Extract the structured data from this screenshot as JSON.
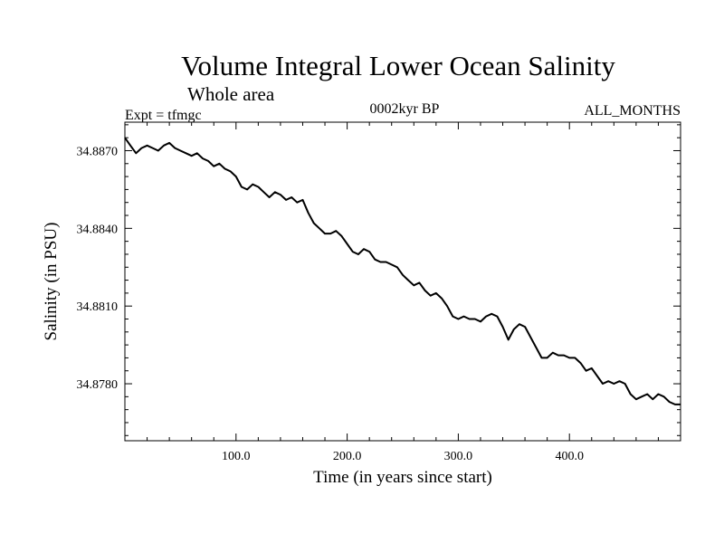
{
  "chart_data": {
    "type": "line",
    "title": "Volume Integral Lower Ocean Salinity",
    "subtitle": "Whole area",
    "annotations": {
      "left": "Expt = tfmgc",
      "center": "0002kyr BP",
      "right": "ALL_MONTHS"
    },
    "xlabel": "Time (in years since start)",
    "ylabel": "Salinity (in PSU)",
    "xlim": [
      0,
      500
    ],
    "ylim": [
      34.8758,
      34.8881
    ],
    "x_ticks": [
      100,
      200,
      300,
      400
    ],
    "x_tick_labels": [
      "100.0",
      "200.0",
      "300.0",
      "400.0"
    ],
    "y_ticks": [
      34.878,
      34.881,
      34.884,
      34.887
    ],
    "y_tick_labels": [
      "34.8780",
      "34.8810",
      "34.8840",
      "34.8870"
    ],
    "x_minor_step": 20,
    "y_minor_step": 0.0005,
    "grid": false,
    "line_color": "#000000",
    "series": [
      {
        "x": [
          0,
          5,
          10,
          15,
          20,
          25,
          30,
          35,
          40,
          45,
          50,
          55,
          60,
          65,
          70,
          75,
          80,
          85,
          90,
          95,
          100,
          105,
          110,
          115,
          120,
          125,
          130,
          135,
          140,
          145,
          150,
          155,
          160,
          165,
          170,
          175,
          180,
          185,
          190,
          195,
          200,
          205,
          210,
          215,
          220,
          225,
          230,
          235,
          240,
          245,
          250,
          255,
          260,
          265,
          270,
          275,
          280,
          285,
          290,
          295,
          300,
          305,
          310,
          315,
          320,
          325,
          330,
          335,
          340,
          345,
          350,
          355,
          360,
          365,
          370,
          375,
          380,
          385,
          390,
          395,
          400,
          405,
          410,
          415,
          420,
          425,
          430,
          435,
          440,
          445,
          450,
          455,
          460,
          465,
          470,
          475,
          480,
          485,
          490,
          495,
          500
        ],
        "values": [
          34.8875,
          34.8872,
          34.8869,
          34.8871,
          34.8872,
          34.8871,
          34.887,
          34.8872,
          34.8873,
          34.8871,
          34.887,
          34.8869,
          34.8868,
          34.8869,
          34.8867,
          34.8866,
          34.8864,
          34.8865,
          34.8863,
          34.8862,
          34.886,
          34.8856,
          34.8855,
          34.8857,
          34.8856,
          34.8854,
          34.8852,
          34.8854,
          34.8853,
          34.8851,
          34.8852,
          34.885,
          34.8851,
          34.8846,
          34.8842,
          34.884,
          34.8838,
          34.8838,
          34.8839,
          34.8837,
          34.8834,
          34.8831,
          34.883,
          34.8832,
          34.8831,
          34.8828,
          34.8827,
          34.8827,
          34.8826,
          34.8825,
          34.8822,
          34.882,
          34.8818,
          34.8819,
          34.8816,
          34.8814,
          34.8815,
          34.8813,
          34.881,
          34.8806,
          34.8805,
          34.8806,
          34.8805,
          34.8805,
          34.8804,
          34.8806,
          34.8807,
          34.8806,
          34.8802,
          34.8797,
          34.8801,
          34.8803,
          34.8802,
          34.8798,
          34.8794,
          34.879,
          34.879,
          34.8792,
          34.8791,
          34.8791,
          34.879,
          34.879,
          34.8788,
          34.8785,
          34.8786,
          34.8783,
          34.878,
          34.8781,
          34.878,
          34.8781,
          34.878,
          34.8776,
          34.8774,
          34.8775,
          34.8776,
          34.8774,
          34.8776,
          34.8775,
          34.8773,
          34.8772,
          34.8772
        ]
      }
    ]
  }
}
